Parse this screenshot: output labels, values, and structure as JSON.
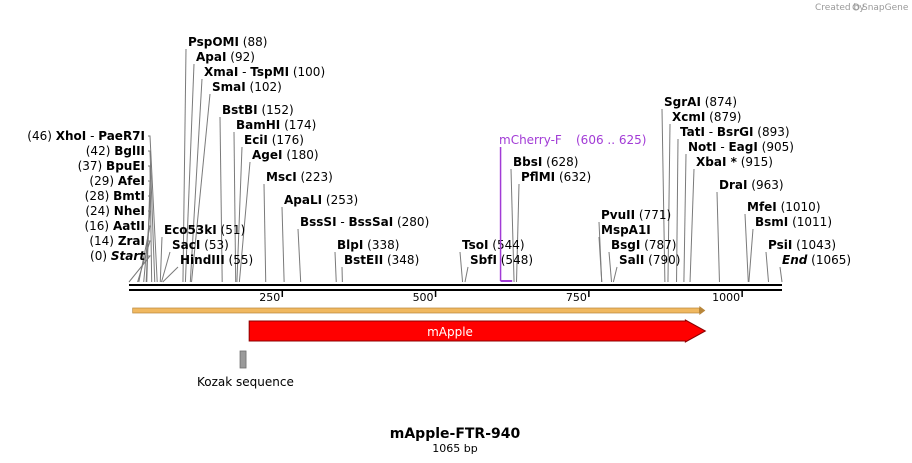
{
  "credit": {
    "text": "Created by",
    "brand": "SnapGene"
  },
  "title": "mApple-FTR-940",
  "subtitle": "1065 bp",
  "sequence_length": 1065,
  "ruler": {
    "ticks": [
      250,
      500,
      750,
      1000
    ]
  },
  "left_labels": [
    {
      "pos_text": "(46)",
      "name": "XhoI",
      "name2": "PaeR7I",
      "site": 46
    },
    {
      "pos_text": "(42)",
      "name": "BglII",
      "site": 42
    },
    {
      "pos_text": "(37)",
      "name": "BpuEI",
      "site": 37
    },
    {
      "pos_text": "(29)",
      "name": "AfeI",
      "site": 29
    },
    {
      "pos_text": "(28)",
      "name": "BmtI",
      "site": 28
    },
    {
      "pos_text": "(24)",
      "name": "NheI",
      "site": 24
    },
    {
      "pos_text": "(16)",
      "name": "AatII",
      "site": 16
    },
    {
      "pos_text": "(14)",
      "name": "ZraI",
      "site": 14
    },
    {
      "pos_text": "(0)",
      "name": "Start",
      "site": 0,
      "italic": true
    }
  ],
  "top_labels": [
    {
      "name": "PspOMI",
      "pos_text": "(88)",
      "site": 88
    },
    {
      "name": "ApaI",
      "pos_text": "(92)",
      "site": 92
    },
    {
      "name": "XmaI",
      "name2": "TspMI",
      "pos_text": "(100)",
      "site": 100
    },
    {
      "name": "SmaI",
      "pos_text": "(102)",
      "site": 102
    },
    {
      "name": "BstBI",
      "pos_text": "(152)",
      "site": 152
    },
    {
      "name": "BamHI",
      "pos_text": "(174)",
      "site": 174
    },
    {
      "name": "EciI",
      "pos_text": "(176)",
      "site": 176
    },
    {
      "name": "AgeI",
      "pos_text": "(180)",
      "site": 180
    },
    {
      "name": "MscI",
      "pos_text": "(223)",
      "site": 223
    },
    {
      "name": "ApaLI",
      "pos_text": "(253)",
      "site": 253
    },
    {
      "name": "BssSI",
      "name2": "BssSaI",
      "pos_text": "(280)",
      "site": 280
    },
    {
      "name": "BlpI",
      "pos_text": "(338)",
      "site": 338
    },
    {
      "name": "BstEII",
      "pos_text": "(348)",
      "site": 348
    }
  ],
  "mid_labels": [
    {
      "name": "Eco53kI",
      "pos_text": "(51)",
      "site": 51
    },
    {
      "name": "SacI",
      "pos_text": "(53)",
      "site": 53
    },
    {
      "name": "HindIII",
      "pos_text": "(55)",
      "site": 55
    }
  ],
  "right_group_labels": [
    {
      "name": "BbsI",
      "pos_text": "(628)",
      "site": 628
    },
    {
      "name": "PflMI",
      "pos_text": "(632)",
      "site": 632
    },
    {
      "name": "TsoI",
      "pos_text": "(544)",
      "site": 544
    },
    {
      "name": "SbfI",
      "pos_text": "(548)",
      "site": 548
    },
    {
      "name": "PvuII",
      "pos_text": "(771)",
      "site": 771
    },
    {
      "name": "MspA1I",
      "pos_text": "",
      "site": 771
    },
    {
      "name": "BsgI",
      "pos_text": "(787)",
      "site": 787
    },
    {
      "name": "SalI",
      "pos_text": "(790)",
      "site": 790
    },
    {
      "name": "SgrAI",
      "pos_text": "(874)",
      "site": 874
    },
    {
      "name": "XcmI",
      "pos_text": "(879)",
      "site": 879
    },
    {
      "name": "TatI",
      "name2": "BsrGI",
      "pos_text": "(893)",
      "site": 893
    },
    {
      "name": "NotI",
      "name2": "EagI",
      "pos_text": "(905)",
      "site": 905
    },
    {
      "name": "XbaI *",
      "pos_text": "(915)",
      "site": 915
    },
    {
      "name": "DraI",
      "pos_text": "(963)",
      "site": 963
    },
    {
      "name": "MfeI",
      "pos_text": "(1010)",
      "site": 1010
    },
    {
      "name": "BsmI",
      "pos_text": "(1011)",
      "site": 1011
    },
    {
      "name": "PsiI",
      "pos_text": "(1043)",
      "site": 1043
    },
    {
      "name": "End",
      "pos_text": "(1065)",
      "site": 1065,
      "italic": true
    }
  ],
  "primer": {
    "name": "mCherry-F",
    "range": "(606 .. 625)",
    "start": 606,
    "end": 625
  },
  "features": {
    "orf": {
      "start": 6,
      "end": 940,
      "color": "#f0b860"
    },
    "mapple": {
      "label": "mApple",
      "start": 196,
      "end": 940,
      "color": "#ff0000"
    },
    "kozak": {
      "label": "Kozak sequence",
      "site": 186,
      "color": "#9a9a9a"
    }
  }
}
